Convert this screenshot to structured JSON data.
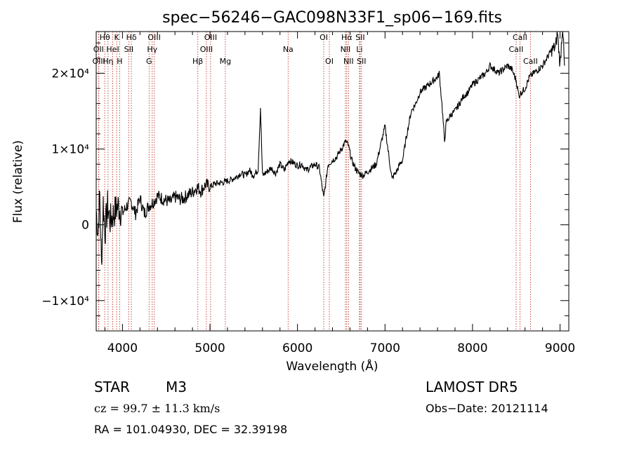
{
  "chart_data": {
    "type": "line",
    "title": "spec−56246−GAC098N33F1_sp06−169.fits",
    "xlabel": "Wavelength (Å)",
    "ylabel": "Flux (relative)",
    "xlim": [
      3700,
      9100
    ],
    "ylim": [
      -14000,
      25500
    ],
    "xticks": [
      {
        "value": 4000,
        "label": "4000"
      },
      {
        "value": 5000,
        "label": "5000"
      },
      {
        "value": 6000,
        "label": "6000"
      },
      {
        "value": 7000,
        "label": "7000"
      },
      {
        "value": 8000,
        "label": "8000"
      },
      {
        "value": 9000,
        "label": "9000"
      }
    ],
    "yticks": [
      {
        "value": -10000,
        "label": "−1×10⁴"
      },
      {
        "value": 0,
        "label": "0"
      },
      {
        "value": 10000,
        "label": "1×10⁴"
      },
      {
        "value": 20000,
        "label": "2×10⁴"
      }
    ],
    "series": [
      {
        "x": [
          3700,
          3720,
          3740,
          3760,
          3780,
          3800,
          3830,
          3860,
          3900,
          3950,
          4000,
          4050,
          4100,
          4150,
          4200,
          4250,
          4300,
          4350,
          4400,
          4450,
          4500,
          4550,
          4600,
          4650,
          4700,
          4750,
          4800,
          4850,
          4900,
          4950,
          5000,
          5050,
          5100,
          5150,
          5200,
          5250,
          5300,
          5350,
          5400,
          5450,
          5500,
          5550,
          5577,
          5600,
          5650,
          5700,
          5750,
          5800,
          5850,
          5900,
          5950,
          6000,
          6050,
          6100,
          6150,
          6200,
          6250,
          6300,
          6350,
          6400,
          6450,
          6500,
          6550,
          6580,
          6620,
          6660,
          6700,
          6750,
          6800,
          6850,
          6900,
          6950,
          7000,
          7050,
          7080,
          7100,
          7130,
          7170,
          7200,
          7250,
          7300,
          7350,
          7400,
          7450,
          7500,
          7550,
          7600,
          7620,
          7650,
          7680,
          7700,
          7750,
          7800,
          7850,
          7900,
          7950,
          8000,
          8050,
          8100,
          8150,
          8200,
          8250,
          8300,
          8350,
          8400,
          8450,
          8500,
          8530,
          8560,
          8600,
          8650,
          8700,
          8750,
          8800,
          8850,
          8900,
          8950,
          8970,
          9000,
          9030,
          9050
        ],
        "y": [
          2000,
          -1000,
          4000,
          -5500,
          3000,
          -1000,
          2500,
          500,
          1500,
          2500,
          1500,
          2500,
          3000,
          1500,
          3500,
          1500,
          2500,
          3000,
          3800,
          3500,
          3200,
          3000,
          3700,
          3400,
          3500,
          4000,
          4300,
          5000,
          4500,
          5300,
          5000,
          5400,
          5500,
          5600,
          5800,
          6000,
          6300,
          6800,
          6500,
          7200,
          6500,
          7300,
          15500,
          6500,
          7000,
          7500,
          6800,
          8000,
          7200,
          8500,
          8200,
          7800,
          8000,
          7200,
          7600,
          8000,
          7500,
          3500,
          8000,
          8500,
          9000,
          10000,
          11000,
          10500,
          8500,
          7500,
          6800,
          6500,
          7000,
          7500,
          8000,
          10500,
          13000,
          8500,
          6000,
          6500,
          7000,
          8000,
          8500,
          12000,
          15000,
          16000,
          17500,
          18000,
          18500,
          19000,
          19500,
          20000,
          16000,
          11000,
          13500,
          14500,
          15000,
          16000,
          17000,
          17500,
          18500,
          19000,
          19500,
          20000,
          21000,
          20500,
          20000,
          20500,
          21000,
          20500,
          19000,
          17000,
          17500,
          18000,
          19500,
          20000,
          20500,
          21000,
          22000,
          23000,
          23500,
          25500,
          21000,
          26500,
          21000
        ]
      }
    ],
    "grid": false,
    "line_markers": [
      {
        "label": "Hθ",
        "x": 3798,
        "row": 1
      },
      {
        "label": "OII",
        "x": 3727,
        "row": 2
      },
      {
        "label": "OIII",
        "x": 3730,
        "row": 3
      },
      {
        "label": "Hη",
        "x": 3835,
        "row": 3
      },
      {
        "label": "HeI",
        "x": 3889,
        "row": 2
      },
      {
        "label": "K",
        "x": 3934,
        "row": 1
      },
      {
        "label": "H",
        "x": 3968,
        "row": 3
      },
      {
        "label": "SII",
        "x": 4072,
        "row": 2
      },
      {
        "label": "Hδ",
        "x": 4102,
        "row": 1
      },
      {
        "label": "OIII",
        "x": 4363,
        "row": 1
      },
      {
        "label": "Hγ",
        "x": 4340,
        "row": 2
      },
      {
        "label": "G",
        "x": 4304,
        "row": 3
      },
      {
        "label": "Hβ",
        "x": 4861,
        "row": 3
      },
      {
        "label": "OIII",
        "x": 5007,
        "row": 1
      },
      {
        "label": "OIII",
        "x": 4959,
        "row": 2
      },
      {
        "label": "Mg",
        "x": 5175,
        "row": 3
      },
      {
        "label": "Na",
        "x": 5893,
        "row": 2
      },
      {
        "label": "OI",
        "x": 6300,
        "row": 1
      },
      {
        "label": "OI",
        "x": 6364,
        "row": 3
      },
      {
        "label": "Hα",
        "x": 6563,
        "row": 1
      },
      {
        "label": "NII",
        "x": 6548,
        "row": 2
      },
      {
        "label": "NII",
        "x": 6583,
        "row": 3
      },
      {
        "label": "SII",
        "x": 6716,
        "row": 1
      },
      {
        "label": "Li",
        "x": 6708,
        "row": 2
      },
      {
        "label": "SII",
        "x": 6731,
        "row": 3
      },
      {
        "label": "CaII",
        "x": 8542,
        "row": 1
      },
      {
        "label": "CaII",
        "x": 8498,
        "row": 2
      },
      {
        "label": "CaII",
        "x": 8662,
        "row": 3
      }
    ]
  },
  "info": {
    "class": "STAR",
    "subclass": "M3",
    "survey": "LAMOST DR5",
    "cz": "cz = 99.7 ± 11.3 km/s",
    "obs_date": "Obs−Date: 20121114",
    "coords": "RA = 101.04930, DEC =  32.39198"
  }
}
